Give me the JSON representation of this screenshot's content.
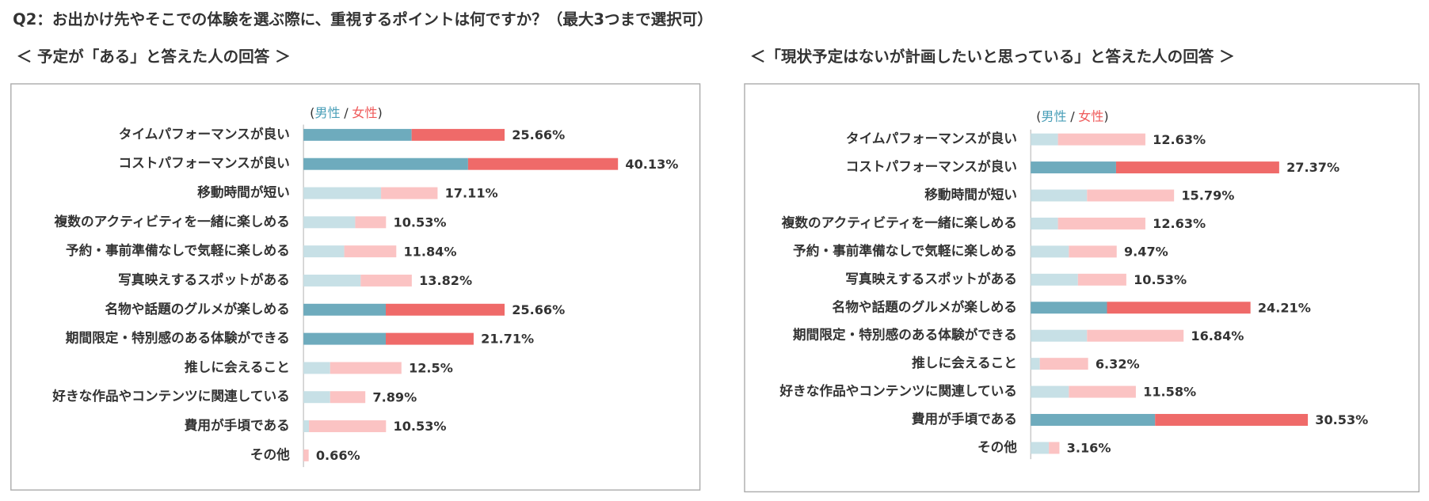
{
  "title": "Q2：お出かけ先やそこでの体験を選ぶ際に、重視するポイントは何ですか？（最大3つまで選択可）",
  "chart_data": [
    {
      "type": "bar",
      "title": "＜ 予定が「ある」と答えた人の回答 ＞",
      "legend_marks": [
        "(",
        "/",
        ")"
      ],
      "categories": [
        "タイムパフォーマンスが良い",
        "コストパフォーマンスが良い",
        "移動時間が短い",
        "複数のアクティビティを一緒に楽しめる",
        "予約・事前準備なしで気軽に楽しめる",
        "写真映えするスポットがある",
        "名物や話題のグルメが楽しめる",
        "期間限定・特別感のある体験ができる",
        "推しに会えること",
        "好きな作品やコンテンツに関連している",
        "費用が手頃である",
        "その他"
      ],
      "series": [
        {
          "name": "男性",
          "color": "#6eabbd",
          "muted_color": "#c7e0e6",
          "text_color": "#4a9fb8",
          "values": [
            13.8,
            21.0,
            9.9,
            6.6,
            5.2,
            7.3,
            10.5,
            10.5,
            3.4,
            3.4,
            0.7,
            0
          ]
        },
        {
          "name": "女性",
          "color": "#ef6a69",
          "muted_color": "#fbc3c3",
          "text_color": "#ef5a5a",
          "values": [
            11.86,
            19.13,
            7.21,
            3.93,
            6.64,
            6.52,
            15.16,
            11.21,
            9.1,
            4.49,
            9.83,
            0.66
          ]
        }
      ],
      "totals": [
        25.66,
        40.13,
        17.11,
        10.53,
        11.84,
        13.82,
        25.66,
        21.71,
        12.5,
        7.89,
        10.53,
        0.66
      ],
      "value_labels": [
        "25.66%",
        "40.13%",
        "17.11%",
        "10.53%",
        "11.84%",
        "13.82%",
        "25.66%",
        "21.71%",
        "12.5%",
        "7.89%",
        "10.53%",
        "0.66%"
      ],
      "highlight": [
        true,
        true,
        false,
        false,
        false,
        false,
        true,
        true,
        false,
        false,
        false,
        false
      ]
    },
    {
      "type": "bar",
      "title": "＜「現状予定はないが計画したいと思っている」と答えた人の回答 ＞",
      "legend_marks": [
        "(",
        "/",
        ")"
      ],
      "categories": [
        "タイムパフォーマンスが良い",
        "コストパフォーマンスが良い",
        "移動時間が短い",
        "複数のアクティビティを一緒に楽しめる",
        "予約・事前準備なしで気軽に楽しめる",
        "写真映えするスポットがある",
        "名物や話題のグルメが楽しめる",
        "期間限定・特別感のある体験ができる",
        "推しに会えること",
        "好きな作品やコンテンツに関連している",
        "費用が手頃である",
        "その他"
      ],
      "series": [
        {
          "name": "男性",
          "color": "#6eabbd",
          "muted_color": "#c7e0e6",
          "text_color": "#4a9fb8",
          "values": [
            3.0,
            9.4,
            6.2,
            3.0,
            4.2,
            5.2,
            8.4,
            6.2,
            1.0,
            4.2,
            13.7,
            2.0
          ]
        },
        {
          "name": "女性",
          "color": "#ef6a69",
          "muted_color": "#fbc3c3",
          "text_color": "#ef5a5a",
          "values": [
            9.63,
            17.97,
            9.59,
            9.63,
            5.27,
            5.33,
            15.81,
            10.64,
            5.32,
            7.38,
            16.83,
            1.16
          ]
        }
      ],
      "totals": [
        12.63,
        27.37,
        15.79,
        12.63,
        9.47,
        10.53,
        24.21,
        16.84,
        6.32,
        11.58,
        30.53,
        3.16
      ],
      "value_labels": [
        "12.63%",
        "27.37%",
        "15.79%",
        "12.63%",
        "9.47%",
        "10.53%",
        "24.21%",
        "16.84%",
        "6.32%",
        "11.58%",
        "30.53%",
        "3.16%"
      ],
      "highlight": [
        false,
        true,
        false,
        false,
        false,
        false,
        true,
        false,
        false,
        false,
        true,
        false
      ]
    }
  ]
}
